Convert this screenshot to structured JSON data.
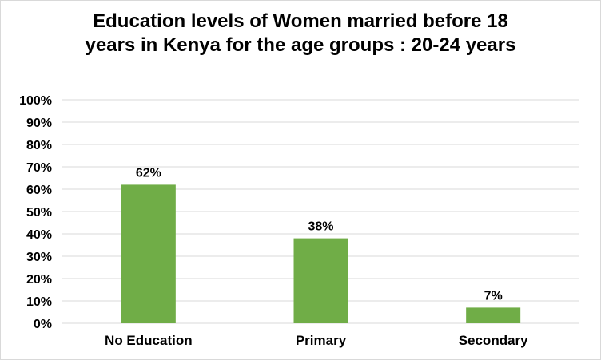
{
  "chart_data": {
    "type": "bar",
    "title_lines": [
      "Education levels of Women married before 18",
      "years in Kenya for the age groups : 20-24 years"
    ],
    "categories": [
      "No Education",
      "Primary",
      "Secondary"
    ],
    "values": [
      62,
      38,
      7
    ],
    "data_labels": [
      "62%",
      "38%",
      "7%"
    ],
    "ylim": [
      0,
      100
    ],
    "y_ticks": [
      "0%",
      "10%",
      "20%",
      "30%",
      "40%",
      "50%",
      "60%",
      "70%",
      "80%",
      "90%",
      "100%"
    ],
    "xlabel": "",
    "ylabel": "",
    "grid": true,
    "legend": "none",
    "bar_color": "#70ad47",
    "grid_color": "#d9d9d9"
  }
}
